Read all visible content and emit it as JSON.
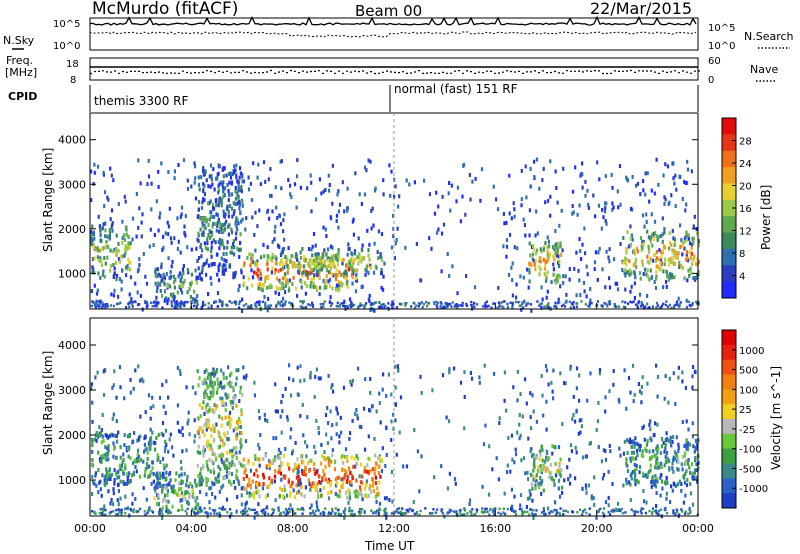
{
  "header": {
    "title": "McMurdo (fitACF)",
    "beam": "Beam 00",
    "date": "22/Mar/2015"
  },
  "strip_labels": {
    "nsky": "N.Sky",
    "freq": "Freq.",
    "freq_unit": "[MHz]",
    "cpid": "CPID",
    "nsearch": "N.Search",
    "nave": "Nave",
    "cpid_left": "themis 3300 RF",
    "cpid_right": "normal (fast) 151 RF",
    "noise_ticks_left": [
      "10^5",
      "10^0"
    ],
    "noise_ticks_right": [
      "10^5",
      "10^0"
    ],
    "freq_ticks": [
      "18",
      "8"
    ],
    "nave_ticks": [
      "60",
      "0"
    ]
  },
  "chart_data": [
    {
      "type": "heatmap",
      "name": "power",
      "x_ticks": [
        "00:00",
        "04:00",
        "08:00",
        "12:00",
        "16:00",
        "20:00",
        "00:00"
      ],
      "xlabel": "Time UT",
      "ylabel": "Slant Range [km]",
      "y_ticks": [
        1000,
        2000,
        3000,
        4000
      ],
      "ylim": [
        200,
        4600
      ],
      "colorbar": {
        "label": "Power [dB]",
        "ticks": [
          4,
          8,
          12,
          16,
          20,
          24,
          28
        ],
        "colors": [
          "#1f2bff",
          "#2a3fc0",
          "#2e6fb0",
          "#3c8a5c",
          "#5faa50",
          "#9bc94a",
          "#e8d033",
          "#f0a020",
          "#ee7019",
          "#e83515",
          "#e20a0a"
        ]
      },
      "echo_regions": [
        {
          "t0": 0.0,
          "t1": 1.6,
          "r0": 900,
          "r1": 2100,
          "level": 0.55
        },
        {
          "t0": 2.5,
          "t1": 4.2,
          "r0": 300,
          "r1": 1200,
          "level": 0.35
        },
        {
          "t0": 4.2,
          "t1": 6.0,
          "r0": 900,
          "r1": 3500,
          "level": 0.3
        },
        {
          "t0": 6.0,
          "t1": 10.5,
          "r0": 650,
          "r1": 1500,
          "level": 0.85
        },
        {
          "t0": 7.5,
          "t1": 11.5,
          "r0": 1000,
          "r1": 1600,
          "level": 0.55
        },
        {
          "t0": 17.3,
          "t1": 18.6,
          "r0": 800,
          "r1": 1800,
          "level": 0.7
        },
        {
          "t0": 21.0,
          "t1": 24.0,
          "r0": 900,
          "r1": 2000,
          "level": 0.7
        }
      ]
    },
    {
      "type": "heatmap",
      "name": "velocity",
      "x_ticks": [
        "00:00",
        "04:00",
        "08:00",
        "12:00",
        "16:00",
        "20:00",
        "00:00"
      ],
      "xlabel": "Time UT",
      "ylabel": "Slant Range [km]",
      "y_ticks": [
        1000,
        2000,
        3000,
        4000
      ],
      "ylim": [
        200,
        4600
      ],
      "colorbar": {
        "label": "Velocity [m s^-1]",
        "ticks": [
          "1000",
          "500",
          "100",
          "25",
          "-25",
          "-100",
          "-500",
          "-1000"
        ],
        "colors": [
          "#1f3ec8",
          "#2a60c8",
          "#3a8a8a",
          "#3aa040",
          "#68c838",
          "#b8b8b8",
          "#f0d020",
          "#f0a010",
          "#f08010",
          "#f05010",
          "#e82010",
          "#e00000"
        ]
      },
      "echo_regions": [
        {
          "t0": 0.0,
          "t1": 3.0,
          "r0": 900,
          "r1": 2100,
          "level": 0.3
        },
        {
          "t0": 2.5,
          "t1": 4.2,
          "r0": 300,
          "r1": 1200,
          "level": 0.4
        },
        {
          "t0": 4.2,
          "t1": 6.0,
          "r0": 900,
          "r1": 3500,
          "level": 0.55
        },
        {
          "t0": 6.0,
          "t1": 11.5,
          "r0": 650,
          "r1": 1600,
          "level": 0.9
        },
        {
          "t0": 17.3,
          "t1": 18.6,
          "r0": 800,
          "r1": 1800,
          "level": 0.5
        },
        {
          "t0": 21.0,
          "t1": 24.0,
          "r0": 900,
          "r1": 2000,
          "level": 0.3
        }
      ]
    }
  ]
}
